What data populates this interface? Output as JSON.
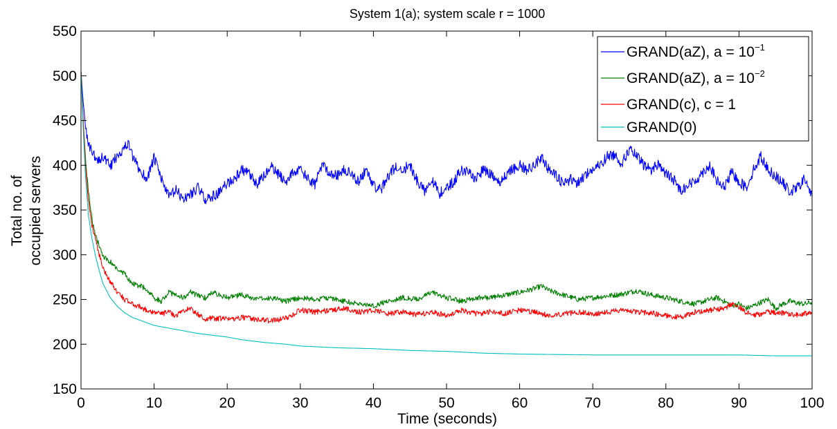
{
  "chart_data": {
    "type": "line",
    "title": "System 1(a); system scale r = 1000",
    "xlabel": "Time (seconds)",
    "ylabel_lines": [
      "Total no. of",
      "occupied servers"
    ],
    "xlim": [
      0,
      100
    ],
    "ylim": [
      150,
      550
    ],
    "xticks": [
      0,
      10,
      20,
      30,
      40,
      50,
      60,
      70,
      80,
      90,
      100
    ],
    "yticks": [
      150,
      200,
      250,
      300,
      350,
      400,
      450,
      500,
      550
    ],
    "grid": false,
    "legend_position": "top-right",
    "series": [
      {
        "name": "GRAND(aZ), a = 10",
        "name_exponent": "−1",
        "color": "#0000ff",
        "noise": 6,
        "x": [
          0,
          0.3,
          1,
          1.5,
          2,
          3,
          4,
          5,
          6,
          6.5,
          7,
          8,
          9,
          10,
          11,
          12,
          13,
          14,
          15,
          16,
          17,
          18,
          19,
          20,
          21,
          22,
          23,
          24,
          25,
          26,
          27,
          28,
          29,
          30,
          31,
          32,
          33,
          34,
          35,
          36,
          37,
          38,
          39,
          40,
          41,
          42,
          43,
          44,
          45,
          46,
          47,
          48,
          49,
          50,
          51,
          52,
          53,
          54,
          55,
          56,
          57,
          58,
          59,
          60,
          61,
          62,
          63,
          64,
          65,
          66,
          67,
          68,
          69,
          70,
          71,
          72,
          73,
          74,
          75,
          76,
          77,
          78,
          79,
          80,
          81,
          82,
          83,
          84,
          85,
          86,
          87,
          88,
          89,
          90,
          91,
          92,
          93,
          94,
          95,
          96,
          97,
          98,
          99,
          100
        ],
        "y": [
          505,
          470,
          420,
          418,
          405,
          410,
          398,
          412,
          420,
          425,
          410,
          395,
          385,
          408,
          385,
          365,
          372,
          362,
          368,
          375,
          362,
          365,
          370,
          380,
          385,
          395,
          390,
          378,
          388,
          398,
          390,
          382,
          392,
          395,
          385,
          378,
          402,
          392,
          388,
          395,
          390,
          382,
          395,
          378,
          372,
          388,
          398,
          395,
          400,
          382,
          372,
          385,
          368,
          375,
          382,
          395,
          392,
          385,
          395,
          390,
          380,
          388,
          395,
          400,
          395,
          400,
          410,
          395,
          388,
          378,
          385,
          380,
          390,
          395,
          400,
          410,
          412,
          402,
          418,
          410,
          400,
          395,
          402,
          390,
          385,
          372,
          378,
          382,
          392,
          400,
          382,
          375,
          392,
          382,
          375,
          395,
          410,
          395,
          388,
          380,
          370,
          375,
          385,
          365
        ]
      },
      {
        "name": "GRAND(aZ), a = 10",
        "name_exponent": "−2",
        "color": "#008000",
        "noise": 3,
        "x": [
          0,
          0.3,
          0.6,
          1,
          1.5,
          2,
          2.5,
          3,
          4,
          5,
          6,
          7,
          8,
          9,
          10,
          11,
          12,
          13,
          14,
          15,
          16,
          17,
          18,
          19,
          20,
          22,
          24,
          26,
          28,
          30,
          32,
          34,
          36,
          38,
          40,
          42,
          44,
          46,
          48,
          50,
          52,
          54,
          56,
          58,
          60,
          62,
          63,
          64,
          66,
          68,
          70,
          72,
          74,
          76,
          78,
          80,
          82,
          84,
          86,
          87,
          88,
          89,
          90,
          91,
          92,
          93,
          94,
          95,
          96,
          97,
          98,
          99,
          100
        ],
        "y": [
          505,
          450,
          410,
          370,
          340,
          322,
          310,
          298,
          292,
          283,
          278,
          268,
          265,
          262,
          252,
          248,
          258,
          255,
          252,
          258,
          254,
          252,
          258,
          255,
          252,
          255,
          250,
          252,
          248,
          252,
          250,
          252,
          248,
          245,
          243,
          248,
          252,
          250,
          258,
          252,
          248,
          252,
          252,
          255,
          258,
          262,
          265,
          260,
          255,
          250,
          252,
          254,
          256,
          260,
          255,
          252,
          248,
          245,
          250,
          252,
          248,
          243,
          245,
          240,
          243,
          247,
          250,
          240,
          245,
          248,
          246,
          245,
          247
        ]
      },
      {
        "name": "GRAND(c), c = 1",
        "name_exponent": "",
        "color": "#ff0000",
        "noise": 3,
        "x": [
          0,
          0.3,
          0.6,
          1,
          1.5,
          2,
          2.5,
          3,
          4,
          5,
          6,
          7,
          8,
          9,
          10,
          11,
          12,
          13,
          14,
          15,
          16,
          17,
          18,
          20,
          22,
          24,
          26,
          28,
          30,
          32,
          34,
          36,
          38,
          40,
          42,
          44,
          46,
          48,
          50,
          52,
          54,
          56,
          58,
          60,
          62,
          64,
          66,
          68,
          70,
          72,
          74,
          76,
          78,
          80,
          82,
          84,
          86,
          88,
          89,
          90,
          91,
          92,
          94,
          96,
          98,
          100
        ],
        "y": [
          505,
          450,
          400,
          360,
          333,
          318,
          300,
          285,
          270,
          258,
          250,
          245,
          242,
          238,
          236,
          234,
          236,
          232,
          238,
          240,
          233,
          228,
          229,
          228,
          230,
          228,
          226,
          229,
          238,
          236,
          238,
          240,
          236,
          238,
          234,
          236,
          233,
          236,
          232,
          238,
          234,
          236,
          234,
          238,
          236,
          232,
          234,
          236,
          234,
          236,
          238,
          236,
          235,
          232,
          230,
          236,
          238,
          240,
          245,
          242,
          235,
          232,
          236,
          235,
          233,
          236
        ]
      },
      {
        "name": "GRAND(0)",
        "name_exponent": "",
        "color": "#00bfbf",
        "noise": 0,
        "x": [
          0,
          0.3,
          0.6,
          1,
          1.5,
          2,
          2.5,
          3,
          4,
          5,
          6,
          7,
          8,
          9,
          10,
          12,
          14,
          16,
          18,
          20,
          22,
          25,
          28,
          30,
          35,
          40,
          45,
          50,
          55,
          60,
          70,
          80,
          90,
          95,
          100
        ],
        "y": [
          505,
          440,
          390,
          345,
          318,
          298,
          282,
          268,
          252,
          242,
          235,
          230,
          227,
          224,
          221,
          218,
          215,
          212,
          210,
          208,
          205,
          202,
          200,
          198,
          196,
          195,
          193,
          192,
          190,
          189,
          188,
          188,
          188,
          187,
          187
        ]
      }
    ]
  }
}
